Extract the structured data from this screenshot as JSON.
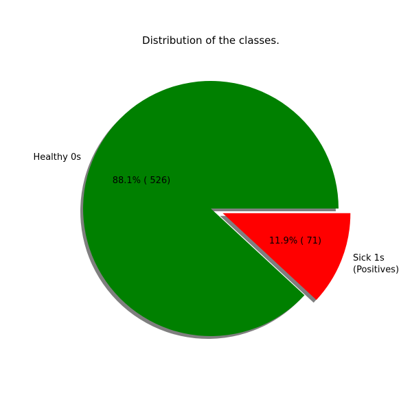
{
  "chart_data": {
    "type": "pie",
    "title": "Distribution of the classes.",
    "slices": [
      {
        "label": "Healthy 0s",
        "value": 526,
        "pct_label": "88.1% ( 526)",
        "color": "#008000",
        "explode": false
      },
      {
        "label_lines": [
          "Sick 1s",
          "(Positives)"
        ],
        "value": 71,
        "pct_label": "11.9% ( 71)",
        "color": "#ff0000",
        "explode": true
      }
    ],
    "start_angle_deg": 0,
    "direction": "counterclockwise",
    "shadow": true,
    "legend": "none"
  }
}
